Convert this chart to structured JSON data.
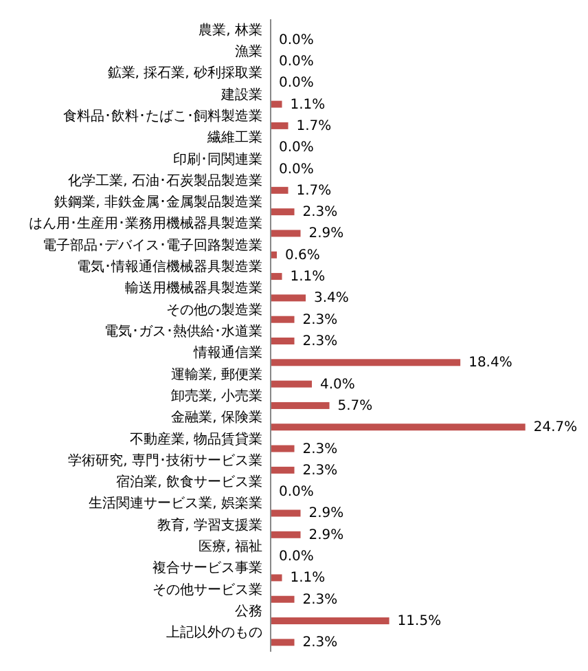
{
  "chart_data": {
    "type": "bar",
    "orientation": "horizontal",
    "color": "#c0504d",
    "categories": [
      "農業, 林業",
      "漁業",
      "鉱業, 採石業, 砂利採取業",
      "建設業",
      "食料品･飲料･たばこ･飼料製造業",
      "繊維工業",
      "印刷･同関連業",
      "化学工業, 石油･石炭製品製造業",
      "鉄鋼業, 非鉄金属･金属製品製造業",
      "はん用･生産用･業務用機械器具製造業",
      "電子部品･デバイス･電子回路製造業",
      "電気･情報通信機械器具製造業",
      "輸送用機械器具製造業",
      "その他の製造業",
      "電気･ガス･熱供給･水道業",
      "情報通信業",
      "運輸業, 郵便業",
      "卸売業, 小売業",
      "金融業, 保険業",
      "不動産業, 物品賃貸業",
      "学術研究, 専門･技術サービス業",
      "宿泊業, 飲食サービス業",
      "生活関連サービス業, 娯楽業",
      "教育, 学習支援業",
      "医療, 福祉",
      "複合サービス事業",
      "その他サービス業",
      "公務",
      "上記以外のもの"
    ],
    "values": [
      0.0,
      0.0,
      0.0,
      1.1,
      1.7,
      0.0,
      0.0,
      1.7,
      2.3,
      2.9,
      0.6,
      1.1,
      3.4,
      2.3,
      2.3,
      18.4,
      4.0,
      5.7,
      24.7,
      2.3,
      2.3,
      0.0,
      2.9,
      2.9,
      0.0,
      1.1,
      2.3,
      11.5,
      2.3
    ],
    "value_labels": [
      "0.0%",
      "0.0%",
      "0.0%",
      "1.1%",
      "1.7%",
      "0.0%",
      "0.0%",
      "1.7%",
      "2.3%",
      "2.9%",
      "0.6%",
      "1.1%",
      "3.4%",
      "2.3%",
      "2.3%",
      "18.4%",
      "4.0%",
      "5.7%",
      "24.7%",
      "2.3%",
      "2.3%",
      "0.0%",
      "2.9%",
      "2.9%",
      "0.0%",
      "1.1%",
      "2.3%",
      "11.5%",
      "2.3%"
    ]
  }
}
